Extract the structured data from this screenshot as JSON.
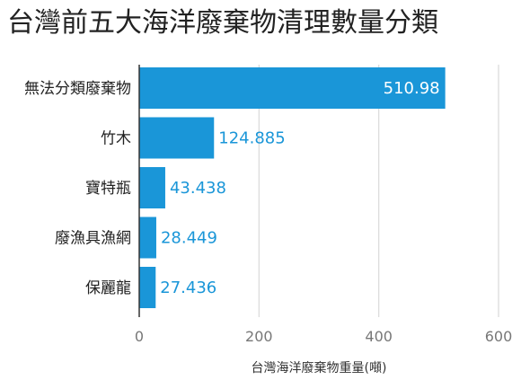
{
  "chart_data": {
    "type": "bar",
    "orientation": "horizontal",
    "title": "台灣前五大海洋廢棄物清理數量分類",
    "categories": [
      "無法分類廢棄物",
      "竹木",
      "寶特瓶",
      "廢漁具漁網",
      "保麗龍"
    ],
    "values": [
      510.98,
      124.885,
      43.438,
      28.449,
      27.436
    ],
    "value_labels": [
      "510.98",
      "124.885",
      "43.438",
      "28.449",
      "27.436"
    ],
    "xlabel": "台灣海洋廢棄物重量(噸)",
    "ylabel": "",
    "xlim": [
      0,
      600
    ],
    "x_ticks": [
      0,
      200,
      400,
      600
    ],
    "x_tick_labels": [
      "0",
      "200",
      "400",
      "600"
    ],
    "grid": true,
    "legend": "none",
    "colors": {
      "bar": "#1a96d8",
      "label_outside": "#1a96d8",
      "label_inside": "#ffffff",
      "grid": "#d9d9d9",
      "axis": "#333333",
      "tick_text": "#777777"
    }
  }
}
